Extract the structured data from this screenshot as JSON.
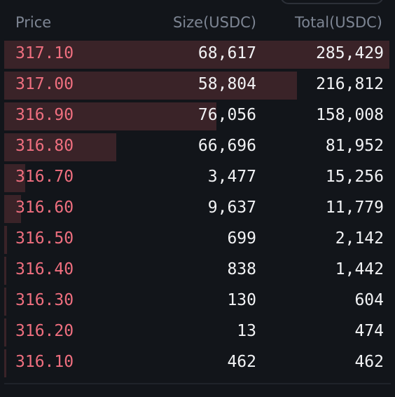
{
  "header": {
    "price": "Price",
    "size": "Size(USDC)",
    "total": "Total(USDC)"
  },
  "colors": {
    "background": "#12151a",
    "ask_price": "#ef6f7f",
    "value_text": "#f2f3f5",
    "header_text": "#7d8593",
    "depth_bar": "#3a2328"
  },
  "rows": [
    {
      "price": "317.10",
      "size": "68,617",
      "total": "285,429",
      "depth": 1.0
    },
    {
      "price": "317.00",
      "size": "58,804",
      "total": "216,812",
      "depth": 0.76
    },
    {
      "price": "316.90",
      "size": "76,056",
      "total": "158,008",
      "depth": 0.55
    },
    {
      "price": "316.80",
      "size": "66,696",
      "total": "81,952",
      "depth": 0.29
    },
    {
      "price": "316.70",
      "size": "3,477",
      "total": "15,256",
      "depth": 0.055
    },
    {
      "price": "316.60",
      "size": "9,637",
      "total": "11,779",
      "depth": 0.043
    },
    {
      "price": "316.50",
      "size": "699",
      "total": "2,142",
      "depth": 0.008
    },
    {
      "price": "316.40",
      "size": "838",
      "total": "1,442",
      "depth": 0.006
    },
    {
      "price": "316.30",
      "size": "130",
      "total": "604",
      "depth": 0.003
    },
    {
      "price": "316.20",
      "size": "13",
      "total": "474",
      "depth": 0.003
    },
    {
      "price": "316.10",
      "size": "462",
      "total": "462",
      "depth": 0.003
    }
  ]
}
